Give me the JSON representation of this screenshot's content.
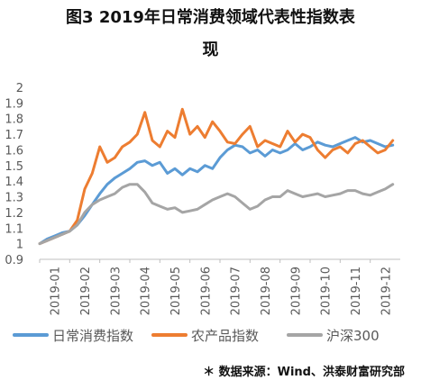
{
  "title": {
    "line1": "图3 2019年日常消费领域代表性指数表",
    "line2": "现"
  },
  "source": "＊ 数据来源：Wind、洪泰财富研究部",
  "chart_data": {
    "type": "line",
    "ylim": [
      0.9,
      2.0
    ],
    "yticks": [
      "0.9",
      "1",
      "1.1",
      "1.2",
      "1.3",
      "1.4",
      "1.5",
      "1.6",
      "1.7",
      "1.8",
      "1.9",
      "2"
    ],
    "xticks": [
      "2019-01",
      "2019-02",
      "2019-03",
      "2019-04",
      "2019-05",
      "2019-06",
      "2019-07",
      "2019-08",
      "2019-09",
      "2019-10",
      "2019-11",
      "2019-12"
    ],
    "grid": false,
    "legend": "bottom",
    "x": [
      0.0,
      0.25,
      0.5,
      0.75,
      1.0,
      1.25,
      1.5,
      1.75,
      2.0,
      2.25,
      2.5,
      2.75,
      3.0,
      3.25,
      3.5,
      3.75,
      4.0,
      4.25,
      4.5,
      4.75,
      5.0,
      5.25,
      5.5,
      5.75,
      6.0,
      6.25,
      6.5,
      6.75,
      7.0,
      7.25,
      7.5,
      7.75,
      8.0,
      8.25,
      8.5,
      8.75,
      9.0,
      9.25,
      9.5,
      9.75,
      10.0,
      10.25,
      10.5,
      10.75,
      11.0,
      11.25,
      11.5,
      11.75
    ],
    "series": [
      {
        "name": "日常消费指数",
        "color": "#5b9bd5",
        "values": [
          1.0,
          1.03,
          1.05,
          1.07,
          1.08,
          1.12,
          1.18,
          1.25,
          1.32,
          1.38,
          1.42,
          1.45,
          1.48,
          1.52,
          1.53,
          1.5,
          1.52,
          1.45,
          1.48,
          1.44,
          1.48,
          1.46,
          1.5,
          1.48,
          1.55,
          1.6,
          1.63,
          1.62,
          1.58,
          1.6,
          1.56,
          1.6,
          1.58,
          1.6,
          1.64,
          1.6,
          1.62,
          1.65,
          1.63,
          1.62,
          1.64,
          1.66,
          1.68,
          1.65,
          1.66,
          1.64,
          1.62,
          1.63
        ]
      },
      {
        "name": "农产品指数",
        "color": "#ed7d31",
        "values": [
          1.0,
          1.02,
          1.04,
          1.06,
          1.08,
          1.15,
          1.35,
          1.45,
          1.62,
          1.52,
          1.55,
          1.62,
          1.65,
          1.7,
          1.84,
          1.66,
          1.62,
          1.72,
          1.68,
          1.86,
          1.7,
          1.75,
          1.68,
          1.78,
          1.72,
          1.65,
          1.64,
          1.7,
          1.75,
          1.62,
          1.66,
          1.64,
          1.62,
          1.72,
          1.65,
          1.7,
          1.68,
          1.6,
          1.55,
          1.6,
          1.62,
          1.58,
          1.64,
          1.66,
          1.62,
          1.58,
          1.6,
          1.66
        ]
      },
      {
        "name": "沪深300",
        "color": "#a5a5a5",
        "values": [
          1.0,
          1.02,
          1.04,
          1.06,
          1.08,
          1.12,
          1.2,
          1.25,
          1.28,
          1.3,
          1.32,
          1.36,
          1.38,
          1.38,
          1.33,
          1.26,
          1.24,
          1.22,
          1.23,
          1.2,
          1.21,
          1.22,
          1.25,
          1.28,
          1.3,
          1.32,
          1.3,
          1.26,
          1.22,
          1.24,
          1.28,
          1.3,
          1.3,
          1.34,
          1.32,
          1.3,
          1.31,
          1.32,
          1.3,
          1.31,
          1.32,
          1.34,
          1.34,
          1.32,
          1.31,
          1.33,
          1.35,
          1.38
        ]
      }
    ]
  }
}
